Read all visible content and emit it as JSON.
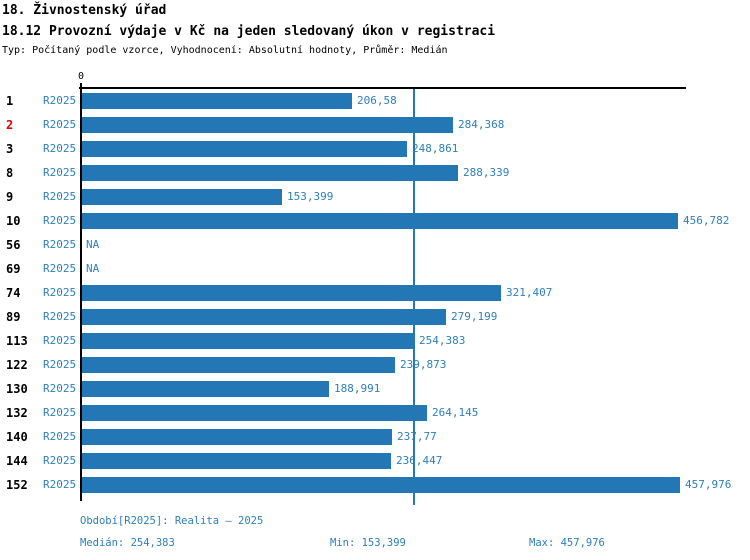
{
  "header": {
    "title1": "18. Živnostenský úřad",
    "title2": "18.12 Provozní výdaje v Kč na jeden sledovaný úkon v registraci",
    "subtitle": "Typ: Počítaný podle vzorce, Vyhodnocení: Absolutní hodnoty, Průměr: Medián"
  },
  "colors": {
    "bar": "#2277b4",
    "text_blue": "#2e7fbb",
    "highlight_red": "#e50000",
    "axis": "#000000"
  },
  "axis": {
    "zero_label": "0"
  },
  "rows": [
    {
      "num": "1",
      "highlight": false,
      "period": "R2025",
      "value": 206.58,
      "label": "206,58"
    },
    {
      "num": "2",
      "highlight": true,
      "period": "R2025",
      "value": 284.368,
      "label": "284,368"
    },
    {
      "num": "3",
      "highlight": false,
      "period": "R2025",
      "value": 248.861,
      "label": "248,861"
    },
    {
      "num": "8",
      "highlight": false,
      "period": "R2025",
      "value": 288.339,
      "label": "288,339"
    },
    {
      "num": "9",
      "highlight": false,
      "period": "R2025",
      "value": 153.399,
      "label": "153,399"
    },
    {
      "num": "10",
      "highlight": false,
      "period": "R2025",
      "value": 456.782,
      "label": "456,782"
    },
    {
      "num": "56",
      "highlight": false,
      "period": "R2025",
      "value": null,
      "label": "NA"
    },
    {
      "num": "69",
      "highlight": false,
      "period": "R2025",
      "value": null,
      "label": "NA"
    },
    {
      "num": "74",
      "highlight": false,
      "period": "R2025",
      "value": 321.407,
      "label": "321,407"
    },
    {
      "num": "89",
      "highlight": false,
      "period": "R2025",
      "value": 279.199,
      "label": "279,199"
    },
    {
      "num": "113",
      "highlight": false,
      "period": "R2025",
      "value": 254.383,
      "label": "254,383"
    },
    {
      "num": "122",
      "highlight": false,
      "period": "R2025",
      "value": 239.873,
      "label": "239,873"
    },
    {
      "num": "130",
      "highlight": false,
      "period": "R2025",
      "value": 188.991,
      "label": "188,991"
    },
    {
      "num": "132",
      "highlight": false,
      "period": "R2025",
      "value": 264.145,
      "label": "264,145"
    },
    {
      "num": "140",
      "highlight": false,
      "period": "R2025",
      "value": 237.77,
      "label": "237,77"
    },
    {
      "num": "144",
      "highlight": false,
      "period": "R2025",
      "value": 236.447,
      "label": "236,447"
    },
    {
      "num": "152",
      "highlight": false,
      "period": "R2025",
      "value": 457.976,
      "label": "457,976"
    }
  ],
  "chart_data": {
    "type": "bar",
    "orientation": "horizontal",
    "title": "18.12 Provozní výdaje v Kč na jeden sledovaný úkon v registraci",
    "subtitle": "Typ: Počítaný podle vzorce, Vyhodnocení: Absolutní hodnoty, Průměr: Medián",
    "categories": [
      "1",
      "2",
      "3",
      "8",
      "9",
      "10",
      "56",
      "69",
      "74",
      "89",
      "113",
      "122",
      "130",
      "132",
      "140",
      "144",
      "152"
    ],
    "series": [
      {
        "name": "R2025",
        "values": [
          206.58,
          284.368,
          248.861,
          288.339,
          153.399,
          456.782,
          null,
          null,
          321.407,
          279.199,
          254.383,
          239.873,
          188.991,
          264.145,
          237.77,
          236.447,
          457.976
        ]
      }
    ],
    "value_labels": [
      "206,58",
      "284,368",
      "248,861",
      "288,339",
      "153,399",
      "456,782",
      "NA",
      "NA",
      "321,407",
      "279,199",
      "254,383",
      "239,873",
      "188,991",
      "264,145",
      "237,77",
      "236,447",
      "457,976"
    ],
    "xlabel": "",
    "ylabel": "",
    "xlim": [
      0,
      463
    ],
    "grid": false,
    "legend_position": "none",
    "median_line": 254.383,
    "highlighted_category": "2",
    "stats": {
      "median": 254.383,
      "min": 153.399,
      "max": 457.976
    }
  },
  "footer": {
    "period_line": "Období[R2025]: Realita – 2025",
    "median_label": "Medián: 254,383",
    "min_label": "Min: 153,399",
    "max_label": "Max: 457,976"
  }
}
